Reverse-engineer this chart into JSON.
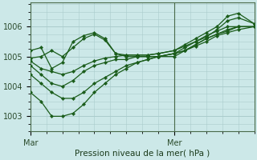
{
  "background_color": "#cce8e8",
  "grid_color": "#aacccc",
  "line_color": "#1a5c1a",
  "title": "Pression niveau de la mer( hPa )",
  "xlabel_mar": "Mar",
  "xlabel_mer": "Mer",
  "ylim": [
    1002.5,
    1006.8
  ],
  "xlim": [
    0,
    84
  ],
  "yticks": [
    1003,
    1004,
    1005,
    1006
  ],
  "ver_line_x": 54,
  "series": [
    [
      0,
      1005.2,
      4,
      1005.3,
      8,
      1004.6,
      12,
      1004.8,
      16,
      1005.5,
      20,
      1005.7,
      24,
      1005.8,
      28,
      1005.6,
      32,
      1005.1,
      36,
      1005.0,
      40,
      1005.0,
      44,
      1005.0,
      48,
      1005.0,
      54,
      1005.1,
      58,
      1005.3,
      62,
      1005.5,
      66,
      1005.7,
      70,
      1005.85,
      74,
      1006.0,
      78,
      1006.0,
      84,
      1006.0
    ],
    [
      0,
      1004.7,
      4,
      1004.4,
      8,
      1004.1,
      12,
      1004.0,
      16,
      1004.2,
      20,
      1004.5,
      24,
      1004.7,
      28,
      1004.8,
      32,
      1004.9,
      36,
      1004.9,
      40,
      1005.0,
      44,
      1005.0,
      48,
      1005.0,
      54,
      1005.1,
      58,
      1005.2,
      62,
      1005.4,
      66,
      1005.6,
      70,
      1005.75,
      74,
      1005.85,
      78,
      1006.0,
      84,
      1006.0
    ],
    [
      0,
      1003.8,
      4,
      1003.5,
      8,
      1003.0,
      12,
      1003.0,
      16,
      1003.1,
      20,
      1003.4,
      24,
      1003.8,
      28,
      1004.1,
      32,
      1004.4,
      36,
      1004.6,
      40,
      1004.8,
      44,
      1004.9,
      48,
      1005.0,
      54,
      1005.1,
      58,
      1005.2,
      62,
      1005.4,
      66,
      1005.6,
      70,
      1005.75,
      74,
      1005.9,
      78,
      1006.0,
      84,
      1006.0
    ],
    [
      0,
      1004.4,
      4,
      1004.1,
      8,
      1003.8,
      12,
      1003.6,
      16,
      1003.6,
      20,
      1003.8,
      24,
      1004.1,
      28,
      1004.3,
      32,
      1004.5,
      36,
      1004.7,
      40,
      1004.8,
      44,
      1004.9,
      48,
      1005.0,
      54,
      1005.0,
      58,
      1005.2,
      62,
      1005.35,
      66,
      1005.5,
      70,
      1005.7,
      74,
      1005.8,
      78,
      1005.9,
      84,
      1006.0
    ],
    [
      0,
      1004.85,
      4,
      1004.6,
      8,
      1004.5,
      12,
      1004.4,
      16,
      1004.5,
      20,
      1004.7,
      24,
      1004.85,
      28,
      1004.95,
      32,
      1005.0,
      36,
      1005.05,
      40,
      1005.05,
      44,
      1005.05,
      48,
      1005.1,
      54,
      1005.2,
      58,
      1005.35,
      62,
      1005.5,
      66,
      1005.65,
      70,
      1005.9,
      74,
      1006.2,
      78,
      1006.3,
      84,
      1006.1
    ],
    [
      0,
      1004.95,
      4,
      1005.0,
      8,
      1005.2,
      12,
      1005.0,
      16,
      1005.3,
      20,
      1005.6,
      24,
      1005.75,
      28,
      1005.55,
      32,
      1005.1,
      36,
      1005.05,
      40,
      1005.05,
      44,
      1005.05,
      48,
      1005.1,
      54,
      1005.2,
      58,
      1005.4,
      62,
      1005.6,
      66,
      1005.8,
      70,
      1006.0,
      74,
      1006.35,
      78,
      1006.45,
      84,
      1006.1
    ]
  ]
}
